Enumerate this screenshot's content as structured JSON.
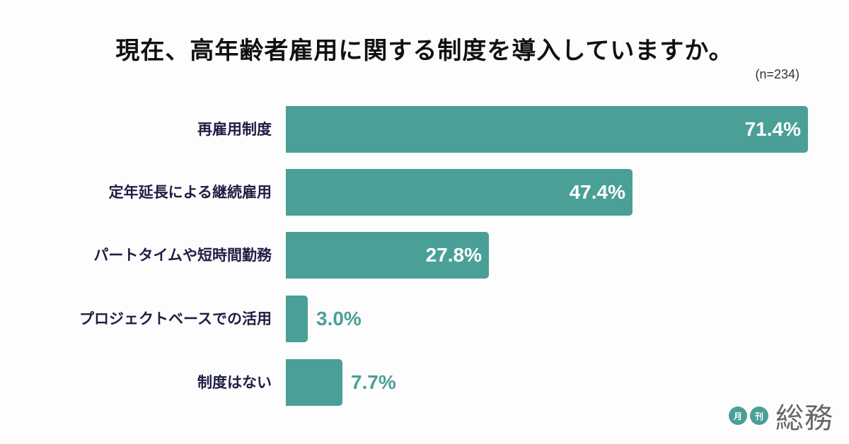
{
  "chart_data": {
    "type": "bar",
    "orientation": "horizontal",
    "title": "現在、高年齢者雇用に関する制度を導入していますか。",
    "sample_size": "(n=234)",
    "categories": [
      "再雇用制度",
      "定年延長による継続雇用",
      "パートタイムや短時間勤務",
      "プロジェクトベースでの活用",
      "制度はない"
    ],
    "values": [
      71.4,
      47.4,
      27.8,
      3.0,
      7.7
    ],
    "value_labels": [
      "71.4%",
      "47.4%",
      "27.8%",
      "3.0%",
      "7.7%"
    ],
    "unit": "%",
    "xlim": [
      0,
      71.4
    ],
    "grid": false,
    "legend": null,
    "bar_color": "#4aa096"
  },
  "branding": {
    "dot1": "月",
    "dot2": "刊",
    "name": "総務"
  }
}
